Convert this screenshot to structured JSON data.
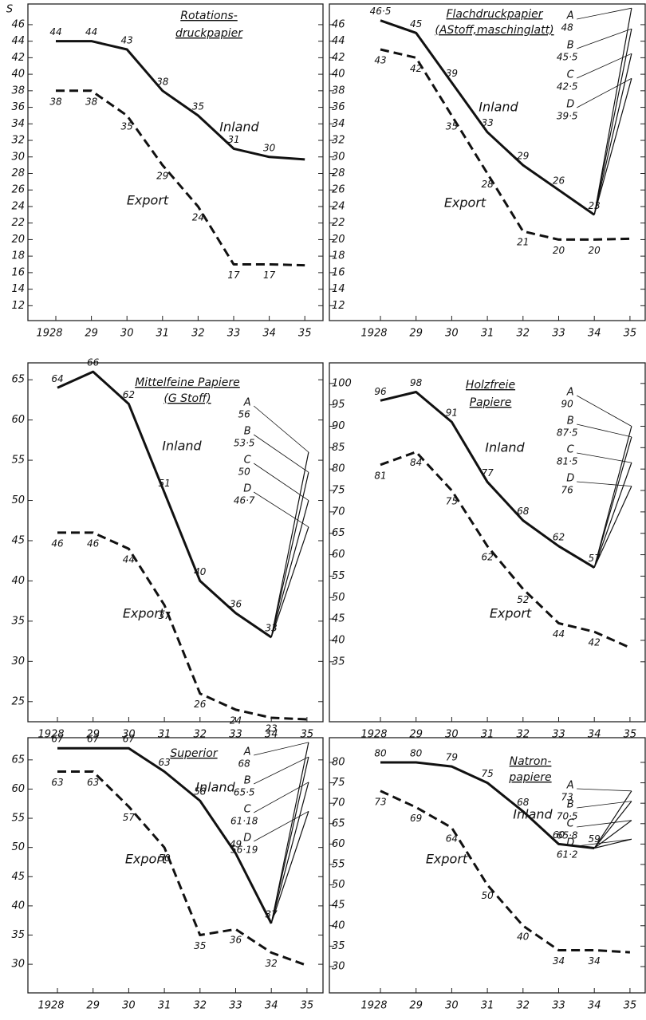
{
  "chart_data": [
    {
      "type": "line",
      "title": [
        "Rotations-",
        "druckpapier"
      ],
      "y_label": "S",
      "categories": [
        "1928",
        "29",
        "30",
        "31",
        "32",
        "33",
        "34",
        "35"
      ],
      "ylim": [
        10.2,
        48.5
      ],
      "yticks": [
        12,
        14,
        16,
        18,
        20,
        22,
        24,
        26,
        28,
        30,
        32,
        34,
        36,
        38,
        40,
        42,
        44,
        46
      ],
      "series": [
        {
          "name": "Inland",
          "color": "#111111",
          "style": "solid",
          "values": [
            44,
            44,
            43,
            38,
            35,
            31,
            30,
            29.7
          ],
          "value_labels": [
            "44",
            "44",
            "43",
            "38",
            "35",
            "31",
            "30",
            null
          ]
        },
        {
          "name": "Export",
          "color": "#111111",
          "style": "dashed",
          "values": [
            38,
            38,
            35,
            29,
            24,
            17,
            17,
            16.9
          ],
          "value_labels": [
            "38",
            "38",
            "35",
            "29",
            "24",
            "17",
            "17",
            null
          ]
        }
      ],
      "variants": []
    },
    {
      "type": "line",
      "title": [
        "Flachdruckpapier",
        "(AStoff,maschinglatt)"
      ],
      "categories": [
        "1928",
        "29",
        "30",
        "31",
        "32",
        "33",
        "34",
        "35"
      ],
      "ylim": [
        10.2,
        48.5
      ],
      "yticks": [
        12,
        14,
        16,
        18,
        20,
        22,
        24,
        26,
        28,
        30,
        32,
        34,
        36,
        38,
        40,
        42,
        44,
        46
      ],
      "series": [
        {
          "name": "Inland",
          "color": "#111111",
          "style": "solid",
          "values": [
            46.5,
            45,
            39,
            33,
            29,
            26,
            23,
            null
          ],
          "value_labels": [
            "46·5",
            "45",
            "39",
            "33",
            "29",
            "26",
            "23",
            null
          ]
        },
        {
          "name": "Export",
          "color": "#111111",
          "style": "dashed",
          "values": [
            43,
            42,
            35,
            28,
            21,
            20,
            20,
            20.1
          ],
          "value_labels": [
            "43",
            "42",
            "35",
            "28",
            "21",
            "20",
            "20",
            null
          ]
        }
      ],
      "variants": [
        {
          "name": "A",
          "value": 48,
          "label": "48"
        },
        {
          "name": "B",
          "value": 45.5,
          "label": "45·5"
        },
        {
          "name": "C",
          "value": 42.5,
          "label": "42·5"
        },
        {
          "name": "D",
          "value": 39.5,
          "label": "39·5"
        }
      ]
    },
    {
      "type": "line",
      "title": [
        "Mittelfeine Papiere",
        "(G Stoff)"
      ],
      "categories": [
        "1928",
        "29",
        "30",
        "31",
        "32",
        "33",
        "34",
        "35"
      ],
      "ylim": [
        22.5,
        67.1
      ],
      "yticks": [
        25,
        30,
        35,
        40,
        45,
        50,
        55,
        60,
        65
      ],
      "series": [
        {
          "name": "Inland",
          "color": "#111111",
          "style": "solid",
          "values": [
            64,
            66,
            62,
            51,
            40,
            36,
            33,
            null
          ],
          "value_labels": [
            "64",
            "66",
            "62",
            "51",
            "40",
            "36",
            "33",
            null
          ]
        },
        {
          "name": "Export",
          "color": "#111111",
          "style": "dashed",
          "values": [
            46,
            46,
            44,
            37,
            26,
            24,
            23,
            22.8
          ],
          "value_labels": [
            "46",
            "46",
            "44",
            "37",
            "26",
            "24",
            "23",
            null
          ]
        }
      ],
      "variants": [
        {
          "name": "A",
          "value": 56,
          "label": "56"
        },
        {
          "name": "B",
          "value": 53.5,
          "label": "53·5"
        },
        {
          "name": "C",
          "value": 50,
          "label": "50"
        },
        {
          "name": "D",
          "value": 46.7,
          "label": "46·7"
        }
      ]
    },
    {
      "type": "line",
      "title": [
        "Holzfreie",
        "Papiere"
      ],
      "categories": [
        "1928",
        "29",
        "30",
        "31",
        "32",
        "33",
        "34",
        "35"
      ],
      "ylim": [
        21,
        104.8
      ],
      "yticks": [
        35,
        40,
        45,
        50,
        55,
        60,
        65,
        70,
        75,
        80,
        85,
        90,
        95,
        100
      ],
      "series": [
        {
          "name": "Inland",
          "color": "#111111",
          "style": "solid",
          "values": [
            96,
            98,
            91,
            77,
            68,
            62,
            57,
            null
          ],
          "value_labels": [
            "96",
            "98",
            "91",
            "77",
            "68",
            "62",
            "57",
            null
          ]
        },
        {
          "name": "Export",
          "color": "#111111",
          "style": "dashed",
          "values": [
            81,
            84,
            75,
            62,
            52,
            44,
            42,
            38.3
          ],
          "value_labels": [
            "81",
            "84",
            "75",
            "62",
            "52",
            "44",
            "42",
            null
          ]
        }
      ],
      "variants": [
        {
          "name": "A",
          "value": 90,
          "label": "90"
        },
        {
          "name": "B",
          "value": 87.5,
          "label": "87·5"
        },
        {
          "name": "C",
          "value": 81.5,
          "label": "81·5"
        },
        {
          "name": "D",
          "value": 76,
          "label": "76"
        }
      ]
    },
    {
      "type": "line",
      "title": [
        "Superior"
      ],
      "categories": [
        "1928",
        "29",
        "30",
        "31",
        "32",
        "33",
        "34",
        "35"
      ],
      "ylim": [
        25.1,
        68.8
      ],
      "yticks": [
        30,
        35,
        40,
        45,
        50,
        55,
        60,
        65
      ],
      "series": [
        {
          "name": "Inland",
          "color": "#111111",
          "style": "solid",
          "values": [
            67,
            67,
            67,
            63,
            58,
            49,
            37,
            null
          ],
          "value_labels": [
            "67",
            "67",
            "67",
            "63",
            "58",
            "49",
            "37",
            null
          ]
        },
        {
          "name": "Export",
          "color": "#111111",
          "style": "dashed",
          "values": [
            63,
            63,
            57,
            50,
            35,
            36,
            32,
            29.8
          ],
          "value_labels": [
            "63",
            "63",
            "57",
            "50",
            "35",
            "36",
            "32",
            null
          ]
        }
      ],
      "variants": [
        {
          "name": "A",
          "value": 68,
          "label": "68"
        },
        {
          "name": "B",
          "value": 65.5,
          "label": "65·5"
        },
        {
          "name": "C",
          "value": 61.18,
          "label": "61·18"
        },
        {
          "name": "D",
          "value": 56.19,
          "label": "56·19"
        }
      ]
    },
    {
      "type": "line",
      "title": [
        "Natron-",
        "papiere"
      ],
      "categories": [
        "1928",
        "29",
        "30",
        "31",
        "32",
        "33",
        "34",
        "35"
      ],
      "ylim": [
        23.55,
        86.05
      ],
      "yticks": [
        30,
        35,
        40,
        45,
        50,
        55,
        60,
        65,
        70,
        75,
        80
      ],
      "series": [
        {
          "name": "Inland",
          "color": "#111111",
          "style": "solid",
          "values": [
            80,
            80,
            79,
            75,
            68,
            60,
            59,
            null
          ],
          "value_labels": [
            "80",
            "80",
            "79",
            "75",
            "68",
            "60",
            "59",
            null
          ]
        },
        {
          "name": "Export",
          "color": "#111111",
          "style": "dashed",
          "values": [
            73,
            69,
            64,
            50,
            40,
            34,
            34,
            33.5
          ],
          "value_labels": [
            "73",
            "69",
            "64",
            "50",
            "40",
            "34",
            "34",
            null
          ]
        }
      ],
      "variants": [
        {
          "name": "A",
          "value": 73,
          "label": "73"
        },
        {
          "name": "B",
          "value": 70.5,
          "label": "70·5"
        },
        {
          "name": "C",
          "value": 65.8,
          "label": "65·8"
        },
        {
          "name": "D",
          "value": 61.2,
          "label": "61·2"
        }
      ]
    }
  ]
}
